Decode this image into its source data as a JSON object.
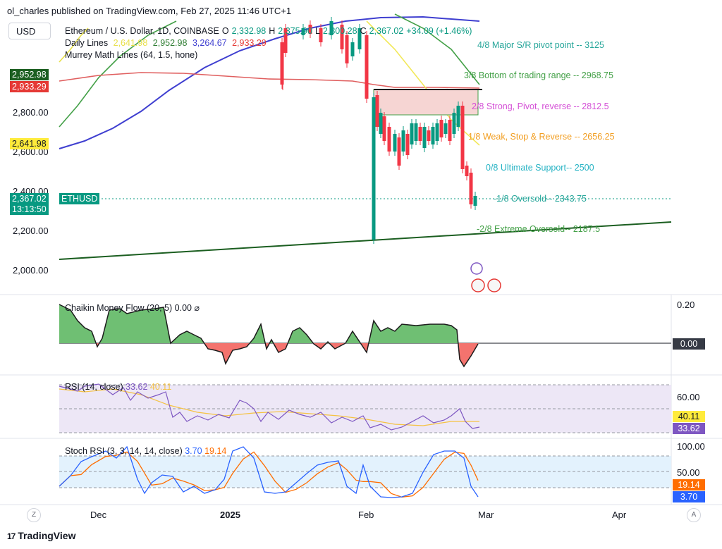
{
  "header": {
    "published": "ol_charles published on TradingView.com, Feb 27, 2025 11:46 UTC+1",
    "currency_button": "USD"
  },
  "symbol_legend": {
    "name": "Ethereum / U.S. Dollar, 1D, COINBASE",
    "o_label": "O",
    "o": "2,332.98",
    "h_label": "H",
    "h": "2,375.90",
    "l_label": "L",
    "l": "2,300.28",
    "c_label": "C",
    "c": "2,367.02",
    "change": "+34.09 (+1.46%)",
    "color_up": "#089981"
  },
  "daily_lines": {
    "label": "Daily Lines",
    "v1": "2,641.98",
    "v2": "2,952.98",
    "v3": "3,264.67",
    "v4": "2,933.29",
    "c1": "#e8e04a",
    "c2": "#43a047",
    "c3": "#3f3fd0",
    "c4": "#e53935"
  },
  "murrey_label": "Murrey Math Lines (64, 1.5, hone)",
  "murrey_levels": [
    {
      "text": "4/8 Major S/R pivot point --  3125",
      "value": 3125,
      "color": "#26a69a"
    },
    {
      "text": "3/8 Bottom of trading range --  2968.75",
      "value": 2968.75,
      "color": "#43a047"
    },
    {
      "text": "2/8 Strong, Pivot, reverse --  2812.5",
      "value": 2812.5,
      "color": "#d44fd6"
    },
    {
      "text": "1/8 Weak, Stop & Reverse --  2656.25",
      "value": 2656.25,
      "color": "#f29d1f"
    },
    {
      "text": "0/8 Ultimate Support--  2500",
      "value": 2500,
      "color": "#26b3c4"
    },
    {
      "text": "-1/8 Oversold--  2343.75",
      "value": 2343.75,
      "color": "#26a69a"
    },
    {
      "text": "-2/8 Extreme Oversold--  2187.5",
      "value": 2187.5,
      "color": "#43a047"
    }
  ],
  "price_axis": {
    "ticks": [
      "2,800.00",
      "2,600.00",
      "2,400.00",
      "2,200.00",
      "2,000.00"
    ],
    "tag_green": "2,952.98",
    "tag_red": "2,933.29",
    "tag_yellow": "2,641.98",
    "tag_last": "2,367.02",
    "tag_timer": "13:13:50",
    "symbol_tag": "ETHUSD"
  },
  "cmf": {
    "label": "Chaikin Money Flow (20, 5)",
    "value": "0.00",
    "axis_top": "0.20",
    "axis_zero": "0.00"
  },
  "rsi": {
    "label": "RSI (14, close)",
    "value": "33.62",
    "ma": "40.11",
    "axis_60": "60.00",
    "tag_ma": "40.11",
    "tag_rsi": "33.62"
  },
  "stoch": {
    "label": "Stoch RSI (3, 3, 14, 14, close)",
    "k": "3.70",
    "d": "19.14",
    "axis_100": "100.00",
    "axis_50": "50.00",
    "tag_d": "19.14",
    "tag_k": "3.70"
  },
  "time_axis": [
    "Dec",
    "2025",
    "Feb",
    "Mar",
    "Apr"
  ],
  "buttons": {
    "zoom": "Z",
    "auto": "A"
  },
  "logo": "TradingView",
  "chart_data": {
    "type": "candlestick",
    "symbol": "ETHUSD",
    "timeframe": "1D",
    "y_range": [
      1920,
      3250
    ],
    "last_close": 2367.02,
    "candles_recent": [
      {
        "date": "2025-02-03",
        "o": 2870,
        "h": 2930,
        "l": 2150,
        "c": 2880
      },
      {
        "date": "2025-02-10",
        "o": 2660,
        "h": 2790,
        "l": 2560,
        "c": 2640
      },
      {
        "date": "2025-02-17",
        "o": 2740,
        "h": 2840,
        "l": 2620,
        "c": 2690
      },
      {
        "date": "2025-02-24",
        "o": 2505,
        "h": 2520,
        "l": 2250,
        "c": 2330
      },
      {
        "date": "2025-02-27",
        "o": 2332.98,
        "h": 2375.9,
        "l": 2300.28,
        "c": 2367.02
      }
    ],
    "cmf_range": [
      -0.12,
      0.2
    ],
    "rsi_range": [
      20,
      80
    ],
    "rsi_last": 33.62,
    "rsi_ma_last": 40.11,
    "stoch_range": [
      0,
      100
    ],
    "stoch_k_last": 3.7,
    "stoch_d_last": 19.14
  }
}
